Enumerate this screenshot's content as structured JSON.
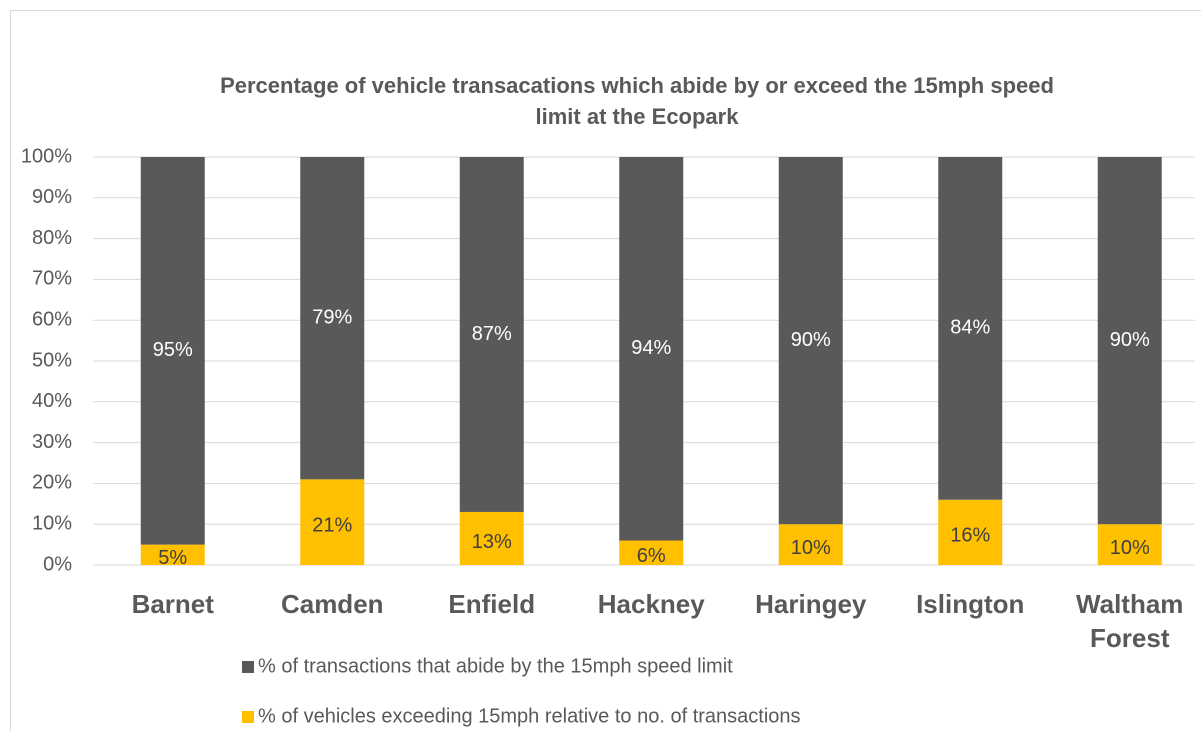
{
  "chart_data": {
    "type": "stacked_bar",
    "title": "Percentage of vehicle transacations which abide by or exceed the 15mph speed limit at the Ecopark",
    "categories": [
      "Barnet",
      "Camden",
      "Enfield",
      "Hackney",
      "Haringey",
      "Islington",
      "Waltham Forest"
    ],
    "series": [
      {
        "name": "% of transactions that abide by the 15mph speed limit",
        "color": "#595959",
        "values": [
          95,
          79,
          87,
          94,
          90,
          84,
          90
        ],
        "value_labels": [
          "95%",
          "79%",
          "87%",
          "94%",
          "90%",
          "84%",
          "90%"
        ]
      },
      {
        "name": "% of vehicles exceeding 15mph relative to no. of transactions",
        "color": "#ffc000",
        "values": [
          5,
          21,
          13,
          6,
          10,
          16,
          10
        ],
        "value_labels": [
          "5%",
          "21%",
          "13%",
          "6%",
          "10%",
          "16%",
          "10%"
        ]
      }
    ],
    "ylim": [
      0,
      100
    ],
    "yticks": [
      {
        "value": 0,
        "label": "0%"
      },
      {
        "value": 10,
        "label": "10%"
      },
      {
        "value": 20,
        "label": "20%"
      },
      {
        "value": 30,
        "label": "30%"
      },
      {
        "value": 40,
        "label": "40%"
      },
      {
        "value": 50,
        "label": "50%"
      },
      {
        "value": 60,
        "label": "60%"
      },
      {
        "value": 70,
        "label": "70%"
      },
      {
        "value": 80,
        "label": "80%"
      },
      {
        "value": 90,
        "label": "90%"
      },
      {
        "value": 100,
        "label": "100%"
      }
    ],
    "grid": true
  }
}
